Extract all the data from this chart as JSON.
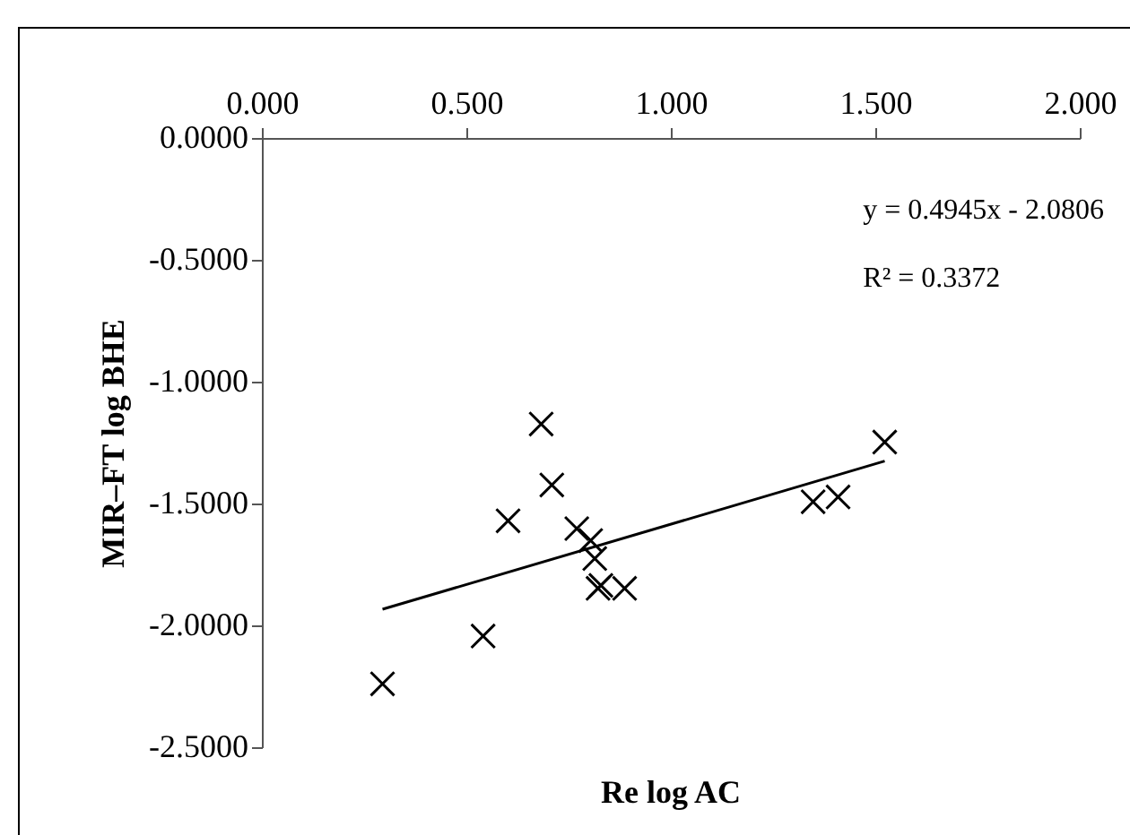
{
  "chart_data": {
    "type": "scatter",
    "xlabel": "Re log AC",
    "ylabel": "MIR–FT log BHE",
    "xlim": [
      0,
      2
    ],
    "xticks": [
      {
        "value": 0,
        "label": "0.000"
      },
      {
        "value": 0.5,
        "label": "0.500"
      },
      {
        "value": 1,
        "label": "1.000"
      },
      {
        "value": 1.5,
        "label": "1.500"
      },
      {
        "value": 2,
        "label": "2.000"
      }
    ],
    "ylim": [
      -2.5,
      0
    ],
    "yticks": [
      {
        "value": 0,
        "label": "0.0000"
      },
      {
        "value": -0.5,
        "label": "-0.5000"
      },
      {
        "value": -1,
        "label": "-1.0000"
      },
      {
        "value": -1.5,
        "label": "-1.5000"
      },
      {
        "value": -2,
        "label": "-2.0000"
      },
      {
        "value": -2.5,
        "label": "-2.5000"
      }
    ],
    "grid": false,
    "annotations": [
      "y = 0.4945x - 2.0806",
      "R² = 0.3372"
    ],
    "series": [
      {
        "marker": "cross",
        "color": "#000000",
        "x": [
          0.295,
          0.541,
          0.602,
          0.683,
          0.709,
          0.77,
          0.804,
          0.814,
          0.822,
          0.829,
          0.887,
          1.348,
          1.409,
          1.523
        ],
        "values": [
          -2.24,
          -2.044,
          -1.571,
          -1.174,
          -1.424,
          -1.603,
          -1.652,
          -1.726,
          -1.848,
          -1.836,
          -1.848,
          -1.493,
          -1.473,
          -1.248
        ]
      },
      {
        "type": "line",
        "marker": "none",
        "color": "#000000",
        "x": [
          0.295,
          1.523
        ],
        "values": [
          -1.934,
          -1.326
        ]
      }
    ]
  }
}
